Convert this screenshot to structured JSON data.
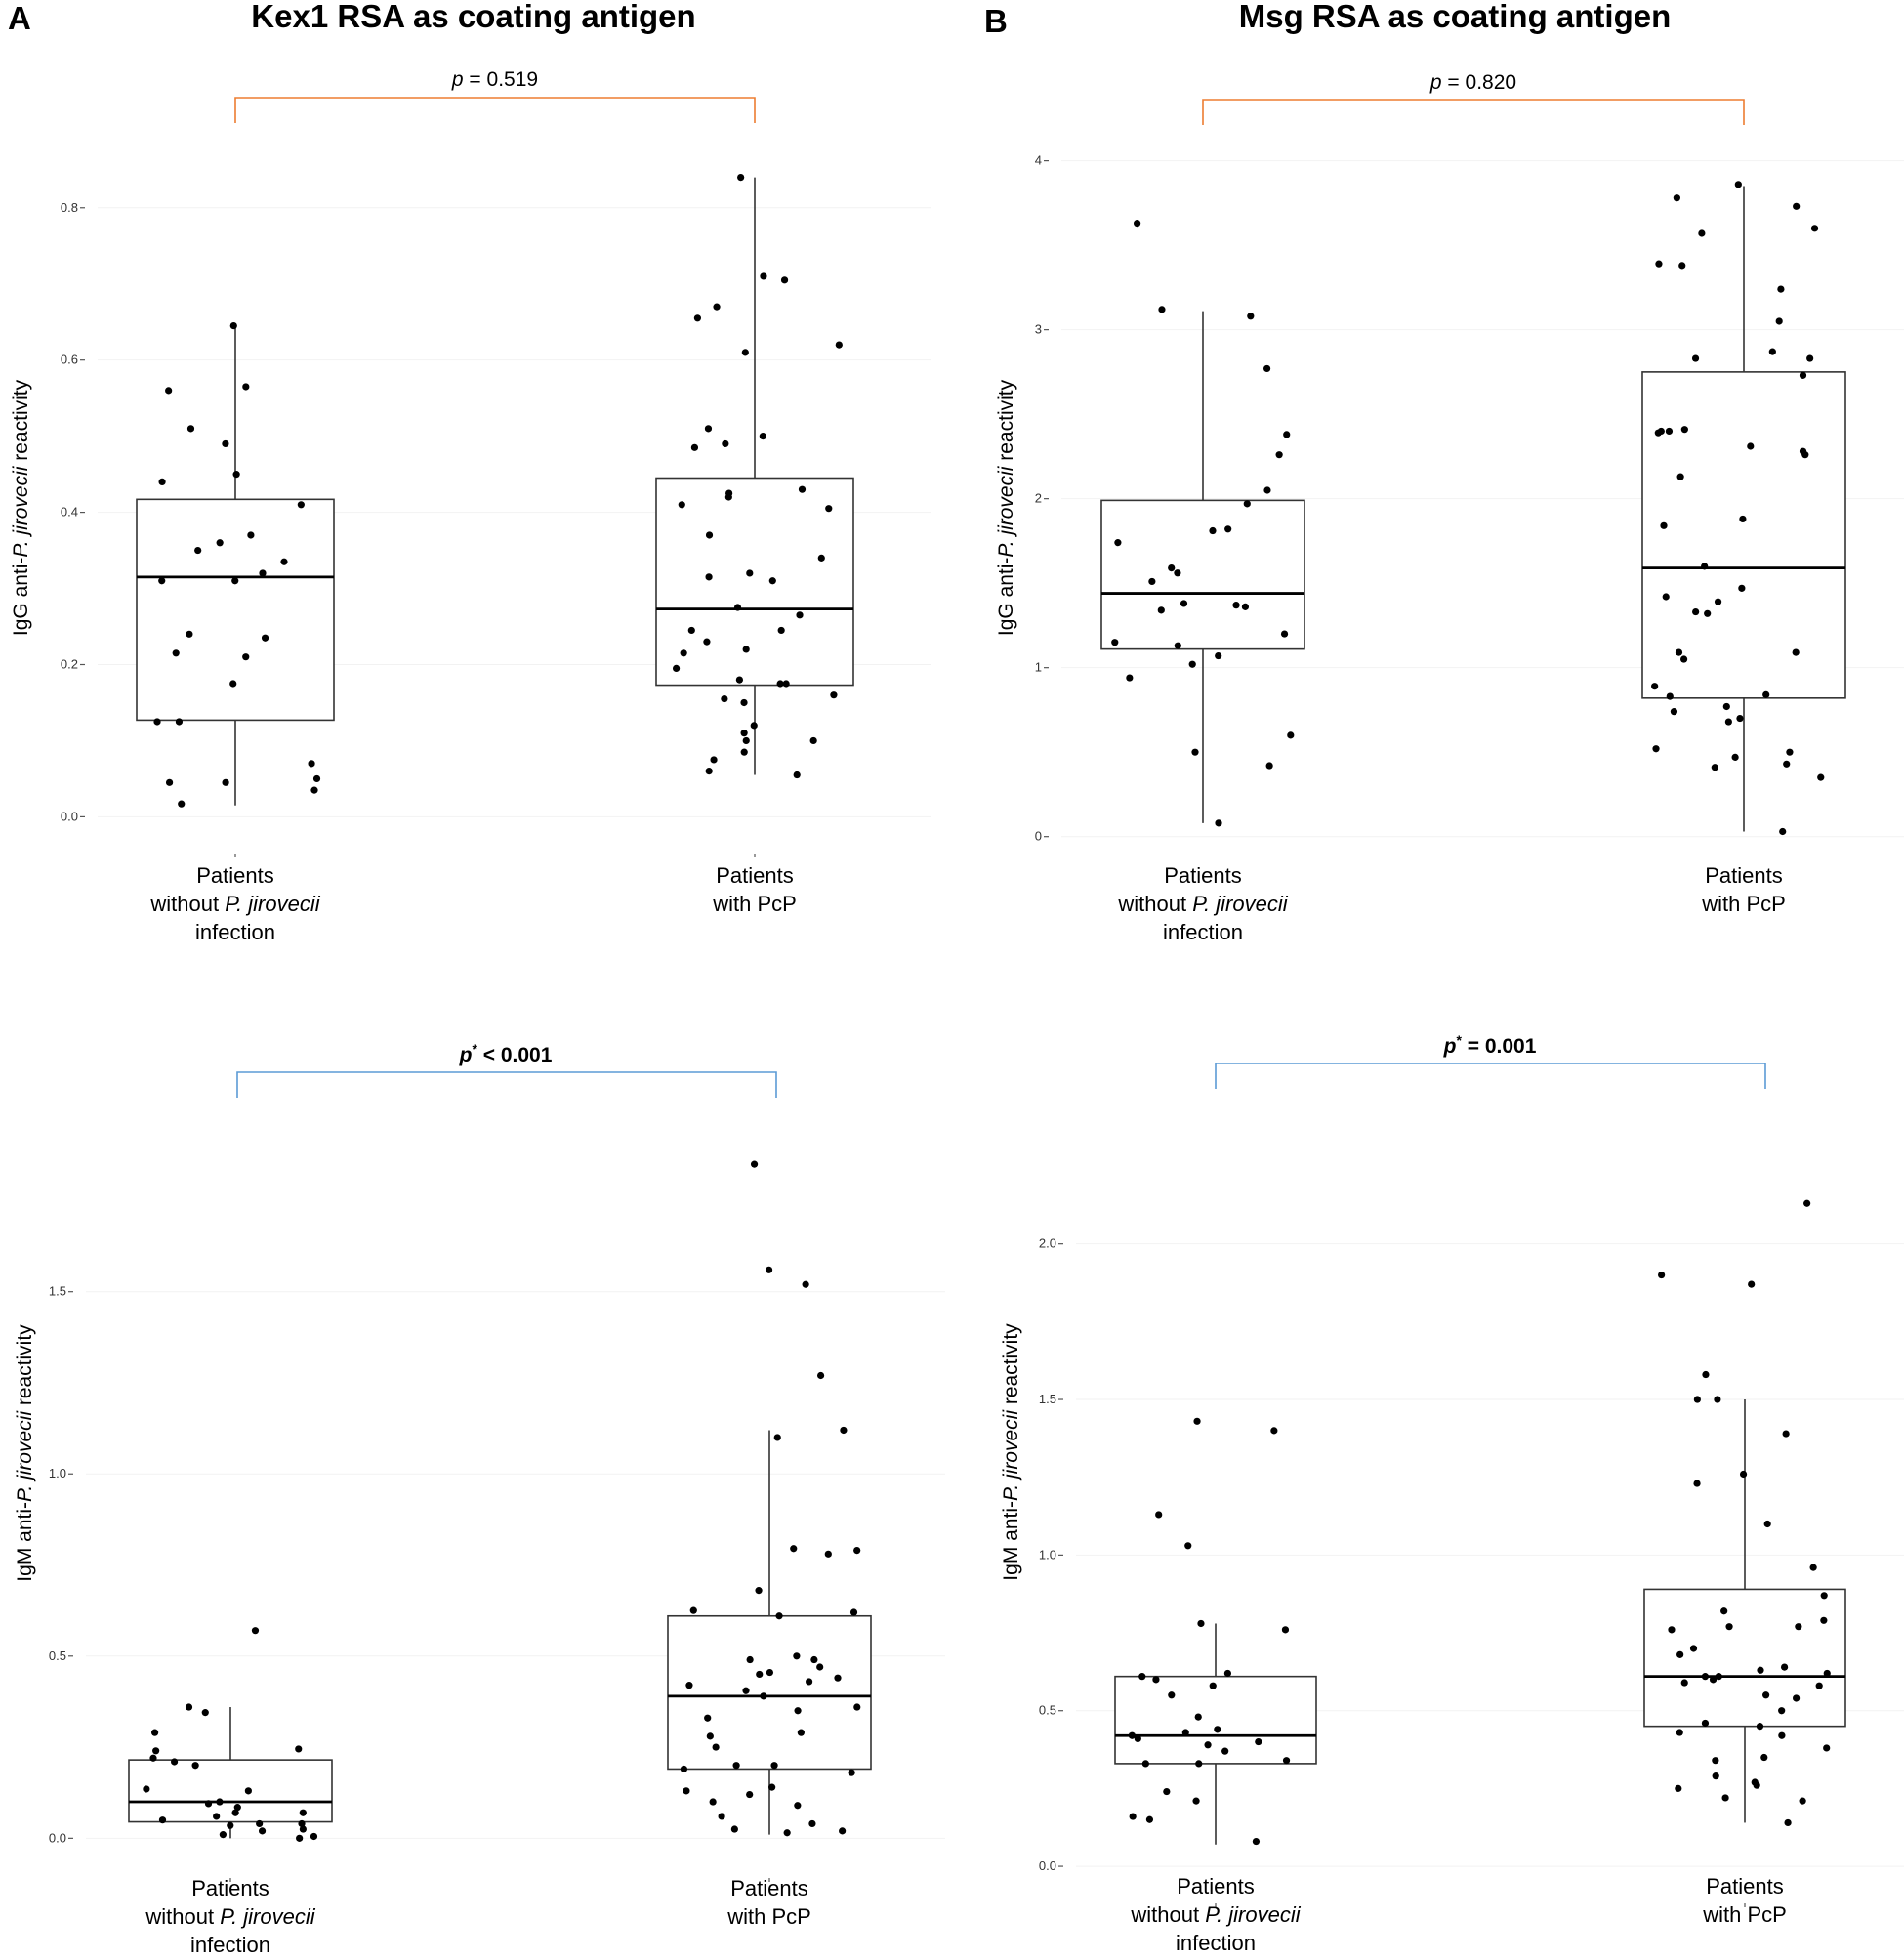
{
  "panels": {
    "A": {
      "letter": "A",
      "title": "Kex1 RSA as coating antigen"
    },
    "B": {
      "letter": "B",
      "title": "Msg RSA as coating antigen"
    }
  },
  "colors": {
    "igg_bracket": "#ed7d31",
    "igm_bracket": "#5b9bd5",
    "box": "#000000",
    "point": "#000000",
    "grid": "#f2f2f2"
  },
  "chart_data": [
    {
      "id": "A-IgG",
      "type": "box",
      "panel": "A",
      "ylabel_prefix": "IgG anti-",
      "ylabel_italic": "P. jirovecii",
      "ylabel_suffix": " reactivity",
      "ylim": [
        -0.02,
        0.86
      ],
      "yticks": [
        0.0,
        0.2,
        0.4,
        0.6,
        0.8
      ],
      "ytick_labels": [
        "0.0",
        "0.2",
        "0.4",
        "0.6",
        "0.8"
      ],
      "p_value": {
        "p": "p",
        "rest": " = 0.519",
        "star": "",
        "bold": false,
        "color": "#ed7d31"
      },
      "groups": [
        {
          "label_lines": [
            {
              "text": "Patients"
            },
            {
              "pre": "without ",
              "ital": "P. jirovecii",
              "post": ""
            },
            {
              "text": "infection"
            }
          ],
          "box": {
            "q1": 0.127,
            "median": 0.315,
            "q3": 0.417,
            "whisker_low": 0.015,
            "whisker_high": 0.645
          },
          "points": [
            0.645,
            0.565,
            0.56,
            0.51,
            0.49,
            0.45,
            0.44,
            0.41,
            0.37,
            0.36,
            0.35,
            0.335,
            0.32,
            0.31,
            0.31,
            0.24,
            0.235,
            0.215,
            0.21,
            0.175,
            0.125,
            0.125,
            0.07,
            0.05,
            0.045,
            0.045,
            0.035,
            0.017
          ]
        },
        {
          "label_lines": [
            {
              "text": "Patients"
            },
            {
              "text": "with PcP"
            }
          ],
          "box": {
            "q1": 0.173,
            "median": 0.273,
            "q3": 0.445,
            "whisker_low": 0.055,
            "whisker_high": 0.84
          },
          "points": [
            0.84,
            0.71,
            0.705,
            0.67,
            0.655,
            0.62,
            0.61,
            0.51,
            0.5,
            0.49,
            0.485,
            0.43,
            0.425,
            0.42,
            0.41,
            0.405,
            0.37,
            0.34,
            0.32,
            0.315,
            0.31,
            0.275,
            0.265,
            0.245,
            0.245,
            0.23,
            0.22,
            0.215,
            0.195,
            0.18,
            0.175,
            0.175,
            0.16,
            0.155,
            0.15,
            0.12,
            0.11,
            0.1,
            0.1,
            0.085,
            0.075,
            0.06,
            0.055
          ]
        }
      ]
    },
    {
      "id": "B-IgG",
      "type": "box",
      "panel": "B",
      "ylabel_prefix": "IgG anti-",
      "ylabel_italic": "P. jirovecii",
      "ylabel_suffix": " reactivity",
      "ylim": [
        -0.1,
        4.2
      ],
      "yticks": [
        0,
        1,
        2,
        3,
        4
      ],
      "ytick_labels": [
        "0",
        "1",
        "2",
        "3",
        "4"
      ],
      "p_value": {
        "p": "p",
        "rest": " = 0.820",
        "star": "",
        "bold": false,
        "color": "#ed7d31"
      },
      "groups": [
        {
          "label_lines": [
            {
              "text": "Patients"
            },
            {
              "pre": "without ",
              "ital": "P. jirovecii",
              "post": ""
            },
            {
              "text": "infection"
            }
          ],
          "box": {
            "q1": 1.11,
            "median": 1.44,
            "q3": 1.99,
            "whisker_low": 0.08,
            "whisker_high": 3.11
          },
          "points": [
            3.63,
            3.12,
            3.08,
            2.77,
            2.38,
            2.26,
            2.05,
            1.97,
            1.82,
            1.81,
            1.74,
            1.59,
            1.56,
            1.51,
            1.38,
            1.37,
            1.36,
            1.34,
            1.2,
            1.15,
            1.13,
            1.07,
            1.02,
            0.94,
            0.6,
            0.5,
            0.42,
            0.08
          ]
        },
        {
          "label_lines": [
            {
              "text": "Patients"
            },
            {
              "text": "with PcP"
            }
          ],
          "box": {
            "q1": 0.82,
            "median": 1.59,
            "q3": 2.75,
            "whisker_low": 0.03,
            "whisker_high": 3.85
          },
          "points": [
            3.86,
            3.78,
            3.73,
            3.6,
            3.57,
            3.39,
            3.38,
            3.24,
            3.05,
            2.87,
            2.83,
            2.83,
            2.73,
            2.41,
            2.4,
            2.4,
            2.39,
            2.31,
            2.28,
            2.26,
            2.13,
            1.88,
            1.84,
            1.6,
            1.47,
            1.42,
            1.39,
            1.33,
            1.32,
            1.09,
            1.09,
            1.05,
            0.89,
            0.84,
            0.83,
            0.77,
            0.74,
            0.7,
            0.68,
            0.52,
            0.5,
            0.47,
            0.43,
            0.41,
            0.35,
            0.03
          ]
        }
      ]
    },
    {
      "id": "A-IgM",
      "type": "box",
      "panel": "A",
      "ylabel_prefix": "IgM anti-",
      "ylabel_italic": "P. jirovecii",
      "ylabel_suffix": " reactivity",
      "ylim": [
        -0.05,
        1.92
      ],
      "yticks": [
        0.0,
        0.5,
        1.0,
        1.5
      ],
      "ytick_labels": [
        "0.0",
        "0.5",
        "1.0",
        "1.5"
      ],
      "p_value": {
        "p": "p",
        "rest": " < 0.001",
        "star": "*",
        "bold": true,
        "color": "#5b9bd5"
      },
      "groups": [
        {
          "label_lines": [
            {
              "text": "Patients"
            },
            {
              "pre": "without ",
              "ital": "P. jirovecii",
              "post": ""
            },
            {
              "text": "infection"
            }
          ],
          "box": {
            "q1": 0.045,
            "median": 0.1,
            "q3": 0.215,
            "whisker_low": 0.0,
            "whisker_high": 0.36
          },
          "points": [
            0.57,
            0.36,
            0.345,
            0.29,
            0.245,
            0.24,
            0.22,
            0.21,
            0.2,
            0.135,
            0.13,
            0.1,
            0.095,
            0.085,
            0.07,
            0.07,
            0.06,
            0.05,
            0.04,
            0.04,
            0.035,
            0.025,
            0.02,
            0.01,
            0.005,
            0.0
          ]
        },
        {
          "label_lines": [
            {
              "text": "Patients"
            },
            {
              "text": "with PcP"
            }
          ],
          "box": {
            "q1": 0.19,
            "median": 0.39,
            "q3": 0.61,
            "whisker_low": 0.01,
            "whisker_high": 1.12
          },
          "points": [
            1.85,
            1.56,
            1.52,
            1.27,
            1.12,
            1.1,
            0.79,
            0.795,
            0.78,
            0.68,
            0.625,
            0.62,
            0.61,
            0.5,
            0.49,
            0.49,
            0.47,
            0.455,
            0.45,
            0.44,
            0.43,
            0.42,
            0.405,
            0.39,
            0.36,
            0.35,
            0.33,
            0.29,
            0.28,
            0.25,
            0.2,
            0.2,
            0.19,
            0.18,
            0.14,
            0.13,
            0.12,
            0.1,
            0.09,
            0.06,
            0.04,
            0.025,
            0.02,
            0.015
          ]
        }
      ]
    },
    {
      "id": "B-IgM",
      "type": "box",
      "panel": "B",
      "ylabel_prefix": "IgM anti-",
      "ylabel_italic": "P. jirovecii",
      "ylabel_suffix": " reactivity",
      "ylim": [
        -0.05,
        2.25
      ],
      "yticks": [
        0.0,
        0.5,
        1.0,
        1.5,
        2.0
      ],
      "ytick_labels": [
        "0.0",
        "0.5",
        "1.0",
        "1.5",
        "2.0"
      ],
      "p_value": {
        "p": "p",
        "rest": " = 0.001",
        "star": "*",
        "bold": true,
        "color": "#5b9bd5"
      },
      "groups": [
        {
          "label_lines": [
            {
              "text": "Patients"
            },
            {
              "pre": "without ",
              "ital": "P. jirovecii",
              "post": ""
            },
            {
              "text": "infection"
            }
          ],
          "box": {
            "q1": 0.33,
            "median": 0.42,
            "q3": 0.61,
            "whisker_low": 0.07,
            "whisker_high": 0.78
          },
          "points": [
            1.43,
            1.4,
            1.13,
            1.03,
            0.78,
            0.76,
            0.62,
            0.61,
            0.6,
            0.58,
            0.55,
            0.48,
            0.44,
            0.43,
            0.42,
            0.41,
            0.4,
            0.39,
            0.37,
            0.34,
            0.33,
            0.33,
            0.24,
            0.21,
            0.16,
            0.15,
            0.08
          ]
        },
        {
          "label_lines": [
            {
              "text": "Patients"
            },
            {
              "text": "with PcP"
            }
          ],
          "box": {
            "q1": 0.45,
            "median": 0.61,
            "q3": 0.89,
            "whisker_low": 0.14,
            "whisker_high": 1.5
          },
          "points": [
            2.13,
            1.9,
            1.87,
            1.58,
            1.5,
            1.5,
            1.39,
            1.26,
            1.23,
            1.1,
            0.96,
            0.87,
            0.82,
            0.79,
            0.77,
            0.77,
            0.76,
            0.7,
            0.68,
            0.64,
            0.63,
            0.62,
            0.61,
            0.61,
            0.6,
            0.59,
            0.58,
            0.55,
            0.54,
            0.5,
            0.46,
            0.45,
            0.43,
            0.42,
            0.38,
            0.35,
            0.34,
            0.29,
            0.27,
            0.26,
            0.25,
            0.22,
            0.21,
            0.14
          ]
        }
      ]
    }
  ]
}
